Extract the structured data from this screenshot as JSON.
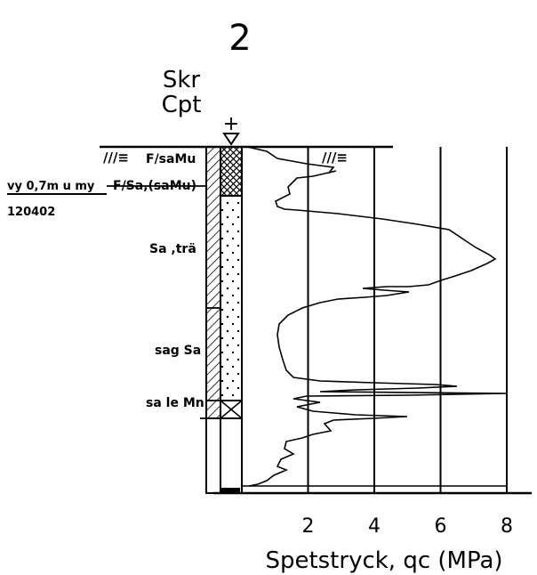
{
  "sheet_number": "2",
  "method": {
    "line1": "Skr",
    "line2": "Cpt"
  },
  "ground_symbol": "+",
  "water_symbol": "///≡",
  "side_notes": {
    "level": "vy 0,7m u my",
    "date": "120402"
  },
  "soil_layers": [
    {
      "label": "F/saMu"
    },
    {
      "label": "F/Sa,(saMu)"
    },
    {
      "label": "Sa ,trä"
    },
    {
      "label": "sag Sa"
    },
    {
      "label": "sa le Mn"
    }
  ],
  "x_axis": {
    "title": "Spetstryck, qc (MPa)",
    "tick_labels": [
      "2",
      "4",
      "6",
      "8"
    ],
    "range": [
      0,
      8
    ]
  },
  "colors": {
    "ink": "#000000",
    "paper": "#ffffff"
  }
}
